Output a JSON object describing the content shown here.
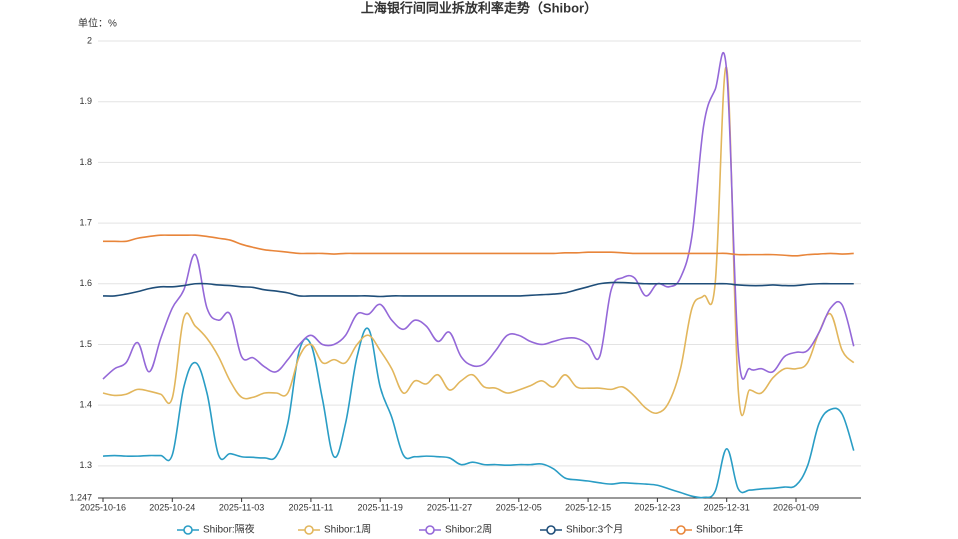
{
  "chart_data": {
    "type": "line",
    "title": "上海银行间同业拆放利率走势（Shibor）",
    "y_label": "单位：%",
    "categories": [
      "2025-10-16",
      null,
      null,
      null,
      null,
      null,
      "2025-10-24",
      null,
      null,
      null,
      null,
      null,
      "2025-11-03",
      null,
      null,
      null,
      null,
      null,
      "2025-11-11",
      null,
      null,
      null,
      null,
      null,
      "2025-11-19",
      null,
      null,
      null,
      null,
      null,
      "2025-11-27",
      null,
      null,
      null,
      null,
      null,
      "2025-12-05",
      null,
      null,
      null,
      null,
      null,
      "2025-12-15",
      null,
      null,
      null,
      null,
      null,
      "2025-12-23",
      null,
      null,
      null,
      null,
      null,
      "2025-12-31",
      null,
      null,
      null,
      null,
      null,
      "2026-01-09",
      null,
      null,
      null,
      null,
      null
    ],
    "ylim": [
      1.247,
      2
    ],
    "yticks": [
      1.247,
      1.3,
      1.4,
      1.5,
      1.6,
      1.7,
      1.8,
      1.9,
      2
    ],
    "grid": true,
    "legend": "bottom",
    "series": [
      {
        "name": "Shibor:隔夜",
        "color": "#2a9dc5",
        "values": [
          1.316,
          1.317,
          1.316,
          1.316,
          1.317,
          1.317,
          1.318,
          1.43,
          1.47,
          1.42,
          1.318,
          1.32,
          1.315,
          1.314,
          1.313,
          1.316,
          1.37,
          1.49,
          1.5,
          1.41,
          1.315,
          1.37,
          1.48,
          1.525,
          1.43,
          1.38,
          1.318,
          1.315,
          1.316,
          1.315,
          1.313,
          1.302,
          1.306,
          1.302,
          1.302,
          1.301,
          1.302,
          1.302,
          1.303,
          1.295,
          1.28,
          1.277,
          1.275,
          1.272,
          1.27,
          1.272,
          1.271,
          1.27,
          1.268,
          1.262,
          1.256,
          1.25,
          1.248,
          1.258,
          1.328,
          1.262,
          1.26,
          1.262,
          1.263,
          1.265,
          1.268,
          1.3,
          1.37,
          1.393,
          1.385,
          1.325
        ]
      },
      {
        "name": "Shibor:1周",
        "color": "#e2b65c",
        "values": [
          1.42,
          1.416,
          1.418,
          1.426,
          1.423,
          1.418,
          1.412,
          1.544,
          1.53,
          1.51,
          1.48,
          1.44,
          1.413,
          1.413,
          1.42,
          1.42,
          1.42,
          1.48,
          1.5,
          1.47,
          1.475,
          1.47,
          1.5,
          1.515,
          1.49,
          1.46,
          1.42,
          1.44,
          1.435,
          1.45,
          1.425,
          1.44,
          1.45,
          1.43,
          1.428,
          1.42,
          1.425,
          1.432,
          1.44,
          1.43,
          1.45,
          1.43,
          1.428,
          1.428,
          1.426,
          1.43,
          1.415,
          1.395,
          1.387,
          1.405,
          1.46,
          1.56,
          1.58,
          1.6,
          1.955,
          1.425,
          1.425,
          1.42,
          1.445,
          1.46,
          1.46,
          1.47,
          1.52,
          1.55,
          1.49,
          1.47
        ]
      },
      {
        "name": "Shibor:2周",
        "color": "#9468d8",
        "values": [
          1.443,
          1.46,
          1.47,
          1.503,
          1.455,
          1.51,
          1.56,
          1.59,
          1.648,
          1.56,
          1.54,
          1.55,
          1.48,
          1.478,
          1.463,
          1.455,
          1.475,
          1.5,
          1.515,
          1.5,
          1.5,
          1.515,
          1.55,
          1.55,
          1.566,
          1.54,
          1.525,
          1.54,
          1.53,
          1.505,
          1.52,
          1.48,
          1.465,
          1.468,
          1.49,
          1.515,
          1.515,
          1.505,
          1.5,
          1.505,
          1.51,
          1.51,
          1.5,
          1.48,
          1.59,
          1.61,
          1.61,
          1.58,
          1.6,
          1.595,
          1.61,
          1.68,
          1.86,
          1.92,
          1.95,
          1.49,
          1.46,
          1.46,
          1.455,
          1.48,
          1.487,
          1.49,
          1.52,
          1.56,
          1.565,
          1.497
        ]
      },
      {
        "name": "Shibor:3个月",
        "color": "#1f4e79",
        "values": [
          1.58,
          1.58,
          1.583,
          1.587,
          1.592,
          1.595,
          1.595,
          1.597,
          1.6,
          1.6,
          1.598,
          1.597,
          1.595,
          1.594,
          1.59,
          1.588,
          1.585,
          1.58,
          1.58,
          1.58,
          1.58,
          1.58,
          1.58,
          1.58,
          1.579,
          1.58,
          1.58,
          1.58,
          1.58,
          1.58,
          1.58,
          1.58,
          1.58,
          1.58,
          1.58,
          1.58,
          1.58,
          1.581,
          1.582,
          1.583,
          1.585,
          1.59,
          1.595,
          1.6,
          1.602,
          1.602,
          1.601,
          1.6,
          1.6,
          1.6,
          1.6,
          1.6,
          1.6,
          1.6,
          1.6,
          1.598,
          1.597,
          1.597,
          1.598,
          1.597,
          1.597,
          1.599,
          1.6,
          1.6,
          1.6,
          1.6
        ]
      },
      {
        "name": "Shibor:1年",
        "color": "#e8853a",
        "values": [
          1.67,
          1.67,
          1.67,
          1.675,
          1.678,
          1.68,
          1.68,
          1.68,
          1.68,
          1.678,
          1.675,
          1.672,
          1.665,
          1.66,
          1.656,
          1.654,
          1.652,
          1.65,
          1.65,
          1.65,
          1.649,
          1.65,
          1.65,
          1.65,
          1.65,
          1.65,
          1.65,
          1.65,
          1.65,
          1.65,
          1.65,
          1.65,
          1.65,
          1.65,
          1.65,
          1.65,
          1.65,
          1.65,
          1.65,
          1.65,
          1.651,
          1.651,
          1.652,
          1.652,
          1.652,
          1.651,
          1.65,
          1.65,
          1.65,
          1.65,
          1.65,
          1.65,
          1.65,
          1.65,
          1.65,
          1.648,
          1.648,
          1.648,
          1.648,
          1.647,
          1.646,
          1.648,
          1.649,
          1.65,
          1.649,
          1.65
        ]
      }
    ]
  }
}
